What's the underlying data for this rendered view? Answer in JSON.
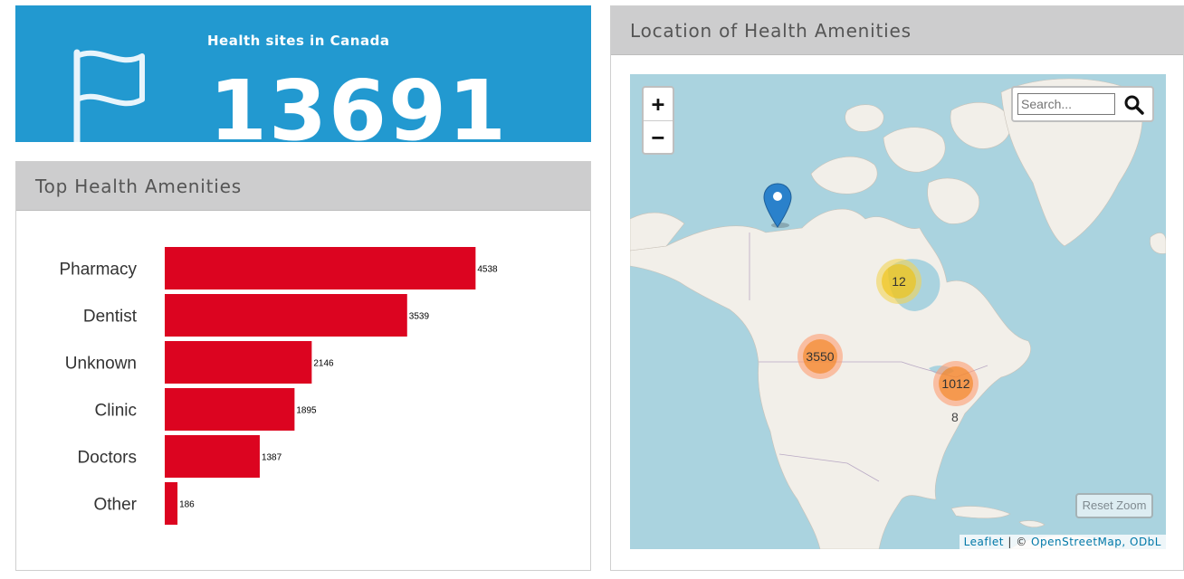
{
  "stat_card": {
    "label": "Health sites in Canada",
    "value": "13691",
    "icon": "flag-icon",
    "background_color": "#2299d0"
  },
  "bar_panel": {
    "title": "Top Health Amenities"
  },
  "chart_data": {
    "type": "bar",
    "orientation": "horizontal",
    "categories": [
      "Pharmacy",
      "Dentist",
      "Unknown",
      "Clinic",
      "Doctors",
      "Other"
    ],
    "values": [
      4538,
      3539,
      2146,
      1895,
      1387,
      186
    ],
    "data_labels": [
      "4538",
      "3539",
      "2146",
      "1895",
      "1387",
      "186"
    ],
    "xlim": [
      0,
      6000
    ],
    "bar_color": "#dc0420",
    "grid": false,
    "legend": "none"
  },
  "map_panel": {
    "title": "Location of Health Amenities",
    "zoom_in_label": "+",
    "zoom_out_label": "−",
    "search_placeholder": "Search...",
    "search_icon": "magnifier-icon",
    "reset_zoom_label": "Reset Zoom",
    "attribution": {
      "leaflet": "Leaflet",
      "separator": "| ©",
      "osm": "OpenStreetMap, ODbL"
    },
    "clusters": [
      {
        "count": "12",
        "color": "yellow"
      },
      {
        "count": "3550",
        "color": "orange"
      },
      {
        "count": "1012",
        "color": "orange"
      }
    ],
    "single_label": "8",
    "marker_icon": "map-pin-icon"
  }
}
